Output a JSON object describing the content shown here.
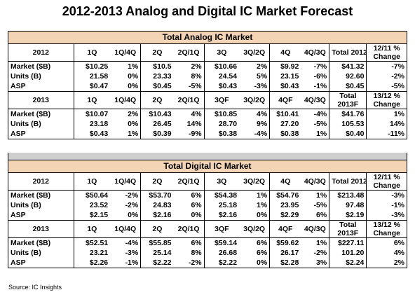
{
  "title": "2012-2013 Analog and Digital IC Market Forecast",
  "source": "Source: IC Insights",
  "columns_2012": [
    "1Q",
    "1Q/4Q",
    "2Q",
    "2Q/1Q",
    "3Q",
    "3Q/2Q",
    "4Q",
    "4Q/3Q",
    "Total 2012"
  ],
  "change_2012": [
    "12/11 %",
    "Change"
  ],
  "columns_2013": [
    "1Q",
    "1Q/4Q",
    "2Q",
    "2Q/1Q",
    "3QF",
    "3Q/2Q",
    "4QF",
    "4Q/3Q"
  ],
  "total_2013": [
    "Total",
    "2013F"
  ],
  "change_2013": [
    "13/12 %",
    "Change"
  ],
  "row_labels": [
    "Market ($B)",
    "Units (B)",
    "ASP"
  ],
  "analog": {
    "heading": "Total Analog IC Market",
    "year_a": "2012",
    "year_b": "2013",
    "rows_2012": [
      [
        "$10.25",
        "1%",
        "$10.5",
        "2%",
        "$10.66",
        "2%",
        "$9.92",
        "-7%",
        "$41.32",
        "-7%"
      ],
      [
        "21.58",
        "0%",
        "23.33",
        "8%",
        "24.54",
        "5%",
        "23.15",
        "-6%",
        "92.60",
        "-2%"
      ],
      [
        "$0.47",
        "0%",
        "$0.45",
        "-5%",
        "$0.43",
        "-3%",
        "$0.43",
        "-1%",
        "$0.45",
        "-5%"
      ]
    ],
    "rows_2013": [
      [
        "$10.07",
        "2%",
        "$10.43",
        "4%",
        "$10.85",
        "4%",
        "$10.41",
        "-4%",
        "$41.76",
        "1%"
      ],
      [
        "23.18",
        "0%",
        "26.45",
        "14%",
        "28.70",
        "9%",
        "27.20",
        "-5%",
        "105.53",
        "14%"
      ],
      [
        "$0.43",
        "1%",
        "$0.39",
        "-9%",
        "$0.38",
        "-4%",
        "$0.38",
        "1%",
        "$0.40",
        "-11%"
      ]
    ]
  },
  "digital": {
    "heading": "Total Digital IC Market",
    "year_a": "2012",
    "year_b": "2013",
    "rows_2012": [
      [
        "$50.64",
        "-2%",
        "$53.70",
        "6%",
        "$54.38",
        "1%",
        "$54.76",
        "1%",
        "$213.48",
        "-3%"
      ],
      [
        "23.52",
        "-2%",
        "24.83",
        "6%",
        "25.18",
        "1%",
        "23.95",
        "-5%",
        "97.48",
        "-1%"
      ],
      [
        "$2.15",
        "0%",
        "$2.16",
        "0%",
        "$2.16",
        "0%",
        "$2.29",
        "6%",
        "$2.19",
        "-3%"
      ]
    ],
    "rows_2013": [
      [
        "$52.51",
        "-4%",
        "$55.85",
        "6%",
        "$59.14",
        "6%",
        "$59.62",
        "1%",
        "$227.11",
        "6%"
      ],
      [
        "23.21",
        "-3%",
        "25.14",
        "8%",
        "26.68",
        "6%",
        "26.17",
        "-2%",
        "101.20",
        "4%"
      ],
      [
        "$2.26",
        "-1%",
        "$2.22",
        "-2%",
        "$2.22",
        "0%",
        "$2.28",
        "3%",
        "$2.24",
        "2%"
      ]
    ]
  }
}
